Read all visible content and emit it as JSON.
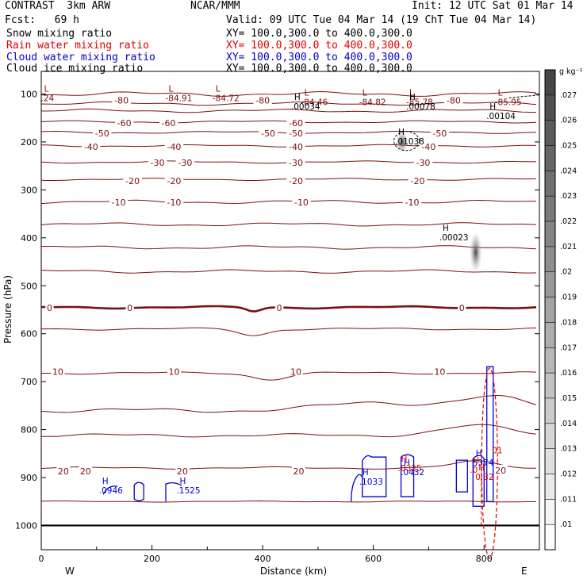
{
  "header": {
    "model": "CONTRAST  3km ARW",
    "center": "NCAR/MMM",
    "init": "Init: 12 UTC Sat 01 Mar 14",
    "fcst": "Fcst:   69 h",
    "valid": "Valid: 09 UTC Tue 04 Mar 14 (19 ChT Tue 04 Mar 14)",
    "fields": [
      {
        "name": "Snow mixing ratio",
        "xy": "XY= 100.0,300.0 to 400.0,300.0",
        "color": "#000000"
      },
      {
        "name": "Rain water mixing ratio",
        "xy": "XY= 100.0,300.0 to 400.0,300.0",
        "color": "#e00000"
      },
      {
        "name": "Cloud water mixing ratio",
        "xy": "XY= 100.0,300.0 to 400.0,300.0",
        "color": "#0000cc"
      },
      {
        "name": "Cloud ice mixing ratio",
        "xy": "XY= 100.0,300.0 to 400.0,300.0",
        "color": "#000000"
      }
    ]
  },
  "chart_data": {
    "type": "cross-section contour",
    "xlabel": "Distance (km)",
    "ylabel": "Pressure (hPa)",
    "xlim": [
      0,
      900
    ],
    "ylim": [
      1050,
      70
    ],
    "x_ticks": [
      "0",
      "200",
      "400",
      "600",
      "800"
    ],
    "y_ticks": [
      "100",
      "200",
      "300",
      "400",
      "500",
      "600",
      "700",
      "800",
      "900",
      "1000"
    ],
    "left_label": "W",
    "right_label": "E",
    "colorbar": {
      "unit": "g  kg⁻¹",
      "labels": [
        ".027",
        ".026",
        ".025",
        ".024",
        ".023",
        ".022",
        ".021",
        ".02",
        ".019",
        ".018",
        ".017",
        ".016",
        ".015",
        ".014",
        ".013",
        ".012",
        ".011",
        ".01"
      ]
    },
    "temperature_contours": [
      {
        "label": "-80",
        "p": 120
      },
      {
        "label": "-60",
        "p": 158
      },
      {
        "label": "-50",
        "p": 180
      },
      {
        "label": "-40",
        "p": 208
      },
      {
        "label": "-30",
        "p": 242
      },
      {
        "label": "-20",
        "p": 278
      },
      {
        "label": "-10",
        "p": 325
      },
      {
        "label": "0",
        "p": 545
      },
      {
        "label": "10",
        "p": 682
      },
      {
        "label": "20",
        "p": 880
      }
    ],
    "temperature_labels": [
      {
        "text": "-80",
        "x": 145,
        "p": 113
      },
      {
        "text": "-80",
        "x": 400,
        "p": 113
      },
      {
        "text": "-80",
        "x": 745,
        "p": 113
      },
      {
        "text": "-60",
        "x": 150,
        "p": 160
      },
      {
        "text": "-60",
        "x": 230,
        "p": 160
      },
      {
        "text": "-60",
        "x": 460,
        "p": 160
      },
      {
        "text": "-50",
        "x": 110,
        "p": 182
      },
      {
        "text": "-50",
        "x": 410,
        "p": 182
      },
      {
        "text": "-50",
        "x": 460,
        "p": 182
      },
      {
        "text": "-50",
        "x": 720,
        "p": 182
      },
      {
        "text": "-40",
        "x": 90,
        "p": 210
      },
      {
        "text": "-40",
        "x": 240,
        "p": 210
      },
      {
        "text": "-40",
        "x": 460,
        "p": 210
      },
      {
        "text": "-40",
        "x": 700,
        "p": 210
      },
      {
        "text": "-30",
        "x": 210,
        "p": 243
      },
      {
        "text": "-30",
        "x": 260,
        "p": 243
      },
      {
        "text": "-30",
        "x": 460,
        "p": 243
      },
      {
        "text": "-30",
        "x": 690,
        "p": 243
      },
      {
        "text": "-20",
        "x": 165,
        "p": 281
      },
      {
        "text": "-20",
        "x": 240,
        "p": 281
      },
      {
        "text": "-20",
        "x": 460,
        "p": 281
      },
      {
        "text": "-20",
        "x": 680,
        "p": 281
      },
      {
        "text": "-10",
        "x": 140,
        "p": 326
      },
      {
        "text": "-10",
        "x": 240,
        "p": 326
      },
      {
        "text": "-10",
        "x": 470,
        "p": 326
      },
      {
        "text": "-10",
        "x": 670,
        "p": 326
      },
      {
        "text": "0",
        "x": 15,
        "p": 546
      },
      {
        "text": "0",
        "x": 160,
        "p": 546
      },
      {
        "text": "0",
        "x": 430,
        "p": 546
      },
      {
        "text": "0",
        "x": 760,
        "p": 546
      },
      {
        "text": "10",
        "x": 30,
        "p": 679
      },
      {
        "text": "10",
        "x": 240,
        "p": 679
      },
      {
        "text": "10",
        "x": 460,
        "p": 679
      },
      {
        "text": "10",
        "x": 720,
        "p": 679
      },
      {
        "text": "20",
        "x": 40,
        "p": 887
      },
      {
        "text": "20",
        "x": 80,
        "p": 887
      },
      {
        "text": "20",
        "x": 255,
        "p": 887
      },
      {
        "text": "20",
        "x": 465,
        "p": 887
      },
      {
        "text": "20",
        "x": 830,
        "p": 885
      }
    ],
    "extrema": [
      {
        "mark": "L",
        "value": ".24",
        "x": 5,
        "p": 100,
        "color": "#7a1010"
      },
      {
        "mark": "L",
        "value": "-84.91",
        "x": 230,
        "p": 100,
        "color": "#7a1010"
      },
      {
        "mark": "L",
        "value": "-84.72",
        "x": 315,
        "p": 100,
        "color": "#7a1010"
      },
      {
        "mark": "L",
        "value": "-84.46",
        "x": 475,
        "p": 108,
        "color": "#7a1010"
      },
      {
        "mark": "L",
        "value": "-84.82",
        "x": 580,
        "p": 108,
        "color": "#7a1010"
      },
      {
        "mark": "L",
        "value": "-85.78",
        "x": 665,
        "p": 108,
        "color": "#7a1010"
      },
      {
        "mark": "L",
        "value": "-85.95",
        "x": 825,
        "p": 108,
        "color": "#7a1010"
      },
      {
        "mark": "H",
        "value": ".00034",
        "x": 457,
        "p": 117,
        "color": "#000000"
      },
      {
        "mark": "H",
        "value": ".00078",
        "x": 665,
        "p": 117,
        "color": "#000000"
      },
      {
        "mark": "H",
        "value": ".00104",
        "x": 810,
        "p": 137,
        "color": "#000000"
      },
      {
        "mark": "H",
        "value": ".01038",
        "x": 645,
        "p": 190,
        "color": "#000000"
      },
      {
        "mark": "H",
        "value": ".00023",
        "x": 725,
        "p": 390,
        "color": "#000000"
      },
      {
        "mark": "H",
        "value": ".0946",
        "x": 110,
        "p": 918,
        "color": "#0000cc"
      },
      {
        "mark": "H",
        "value": ".1525",
        "x": 250,
        "p": 918,
        "color": "#0000cc"
      },
      {
        "mark": "H",
        "value": ".1033",
        "x": 580,
        "p": 900,
        "color": "#0000cc"
      },
      {
        "mark": "H",
        "value": "5374",
        "x": 785,
        "p": 860,
        "color": "#0000cc"
      },
      {
        "mark": "H",
        "value": ".0432",
        "x": 655,
        "p": 880,
        "color": "#0000cc"
      },
      {
        "mark": "H",
        "value": ".0325",
        "x": 650,
        "p": 872,
        "color": "#e00000"
      },
      {
        "mark": "H",
        "value": ".0",
        "x": 780,
        "p": 875,
        "color": "#e00000"
      },
      {
        "mark": "H",
        "value": "0.32",
        "x": 790,
        "p": 890,
        "color": "#e00000"
      },
      {
        "mark": "",
        "value": "01",
        "x": 820,
        "p": 835,
        "color": "#e00000"
      }
    ]
  }
}
